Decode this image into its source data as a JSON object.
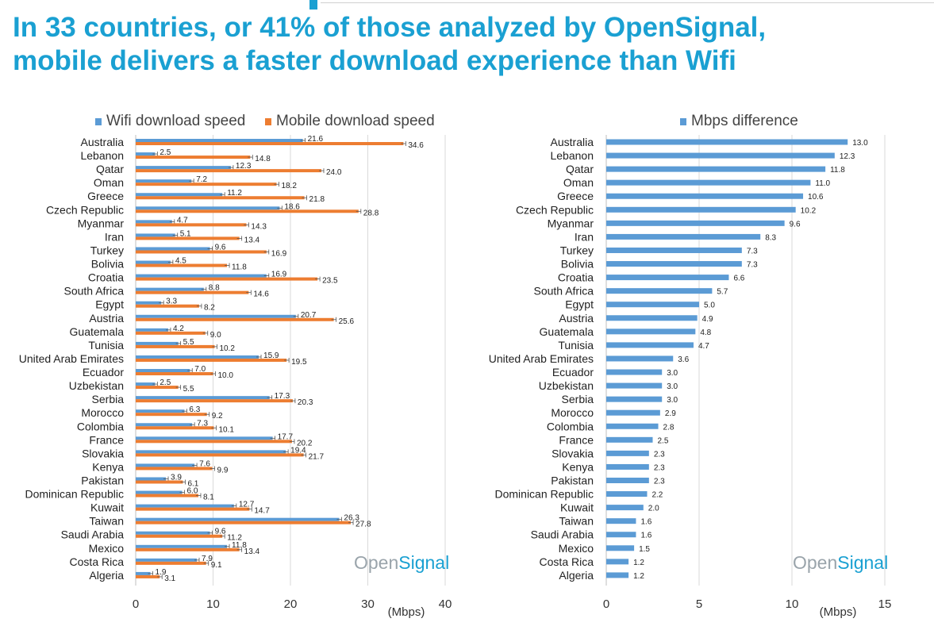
{
  "headline": {
    "line1": "In 33 countries, or 41% of those analyzed by OpenSignal,",
    "line2": "mobile delivers a faster download experience than Wifi"
  },
  "colors": {
    "accent": "#1aa0d2",
    "wifi": "#5b9bd5",
    "mobile": "#ed7d31",
    "grid": "#d9d9d9"
  },
  "chart_data": [
    {
      "type": "bar",
      "orientation": "horizontal",
      "categories": [
        "Australia",
        "Lebanon",
        "Qatar",
        "Oman",
        "Greece",
        "Czech Republic",
        "Myanmar",
        "Iran",
        "Turkey",
        "Bolivia",
        "Croatia",
        "South Africa",
        "Egypt",
        "Austria",
        "Guatemala",
        "Tunisia",
        "United Arab Emirates",
        "Ecuador",
        "Uzbekistan",
        "Serbia",
        "Morocco",
        "Colombia",
        "France",
        "Slovakia",
        "Kenya",
        "Pakistan",
        "Dominican Republic",
        "Kuwait",
        "Taiwan",
        "Saudi Arabia",
        "Mexico",
        "Costa Rica",
        "Algeria"
      ],
      "series": [
        {
          "name": "Wifi download speed",
          "color": "#5b9bd5",
          "values": [
            21.6,
            2.5,
            12.3,
            7.2,
            11.2,
            18.6,
            4.7,
            5.1,
            9.6,
            4.5,
            16.9,
            8.8,
            3.3,
            20.7,
            4.2,
            5.5,
            15.9,
            7.0,
            2.5,
            17.3,
            6.3,
            7.3,
            17.7,
            19.4,
            7.6,
            3.9,
            6.0,
            12.7,
            26.3,
            9.6,
            11.8,
            7.9,
            1.9
          ],
          "labels": [
            "21.6",
            "2.5",
            "12.3",
            "7.2",
            "11.2",
            "18.6",
            "4.7",
            "5.1",
            "9.6",
            "4.5",
            "16.9",
            "8.8",
            "3.3",
            "20.7",
            "4.2",
            "5.5",
            "15.9",
            "7.0",
            "2.5",
            "17.3",
            "6.3",
            "7.3",
            "17.7",
            "19.4",
            "7.6",
            "3.9",
            "6.0",
            "12.7",
            "26.3",
            "9.6",
            "11.8",
            "7.9",
            "1.9"
          ]
        },
        {
          "name": "Mobile download speed",
          "color": "#ed7d31",
          "values": [
            34.6,
            14.8,
            24.0,
            18.2,
            21.8,
            28.8,
            14.3,
            13.4,
            16.9,
            11.8,
            23.5,
            14.6,
            8.2,
            25.6,
            9.0,
            10.2,
            19.5,
            10.0,
            5.5,
            20.3,
            9.2,
            10.1,
            20.2,
            21.7,
            9.9,
            6.1,
            8.1,
            14.7,
            27.8,
            11.2,
            13.4,
            9.1,
            3.1
          ],
          "labels": [
            "34.6",
            "14.8",
            "24.0",
            "18.2",
            "21.8",
            "28.8",
            "14.3",
            "13.4",
            "16.9",
            "11.8",
            "23.5",
            "14.6",
            "8.2",
            "25.6",
            "9.0",
            "10.2",
            "19.5",
            "10.0",
            "5.5",
            "20.3",
            "9.2",
            "10.1",
            "20.2",
            "21.7",
            "9.9",
            "6.1",
            "8.1",
            "14.7",
            "27.8",
            "11.2",
            "13.4",
            "9.1",
            "3.1"
          ]
        }
      ],
      "xlim": [
        0,
        40
      ],
      "xticks": [
        "0",
        "10",
        "20",
        "30",
        "40"
      ],
      "xlabel": "(Mbps)",
      "grid": true,
      "legend_position": "top",
      "watermark": {
        "part1": "Open",
        "part2": "Signal"
      }
    },
    {
      "type": "bar",
      "orientation": "horizontal",
      "categories": [
        "Australia",
        "Lebanon",
        "Qatar",
        "Oman",
        "Greece",
        "Czech Republic",
        "Myanmar",
        "Iran",
        "Turkey",
        "Bolivia",
        "Croatia",
        "South Africa",
        "Egypt",
        "Austria",
        "Guatemala",
        "Tunisia",
        "United Arab Emirates",
        "Ecuador",
        "Uzbekistan",
        "Serbia",
        "Morocco",
        "Colombia",
        "France",
        "Slovakia",
        "Kenya",
        "Pakistan",
        "Dominican Republic",
        "Kuwait",
        "Taiwan",
        "Saudi Arabia",
        "Mexico",
        "Costa Rica",
        "Algeria"
      ],
      "series": [
        {
          "name": "Mbps difference",
          "color": "#5b9bd5",
          "values": [
            13.0,
            12.3,
            11.8,
            11.0,
            10.6,
            10.2,
            9.6,
            8.3,
            7.3,
            7.3,
            6.6,
            5.7,
            5.0,
            4.9,
            4.8,
            4.7,
            3.6,
            3.0,
            3.0,
            3.0,
            2.9,
            2.8,
            2.5,
            2.3,
            2.3,
            2.3,
            2.2,
            2.0,
            1.6,
            1.6,
            1.5,
            1.2,
            1.2
          ],
          "labels": [
            "13.0",
            "12.3",
            "11.8",
            "11.0",
            "10.6",
            "10.2",
            "9.6",
            "8.3",
            "7.3",
            "7.3",
            "6.6",
            "5.7",
            "5.0",
            "4.9",
            "4.8",
            "4.7",
            "3.6",
            "3.0",
            "3.0",
            "3.0",
            "2.9",
            "2.8",
            "2.5",
            "2.3",
            "2.3",
            "2.3",
            "2.2",
            "2.0",
            "1.6",
            "1.6",
            "1.5",
            "1.2",
            "1.2"
          ]
        }
      ],
      "xlim": [
        0,
        15
      ],
      "xticks": [
        "0",
        "5",
        "10",
        "15"
      ],
      "xlabel": "(Mbps)",
      "grid": true,
      "legend_position": "top",
      "watermark": {
        "part1": "Open",
        "part2": "Signal"
      }
    }
  ]
}
